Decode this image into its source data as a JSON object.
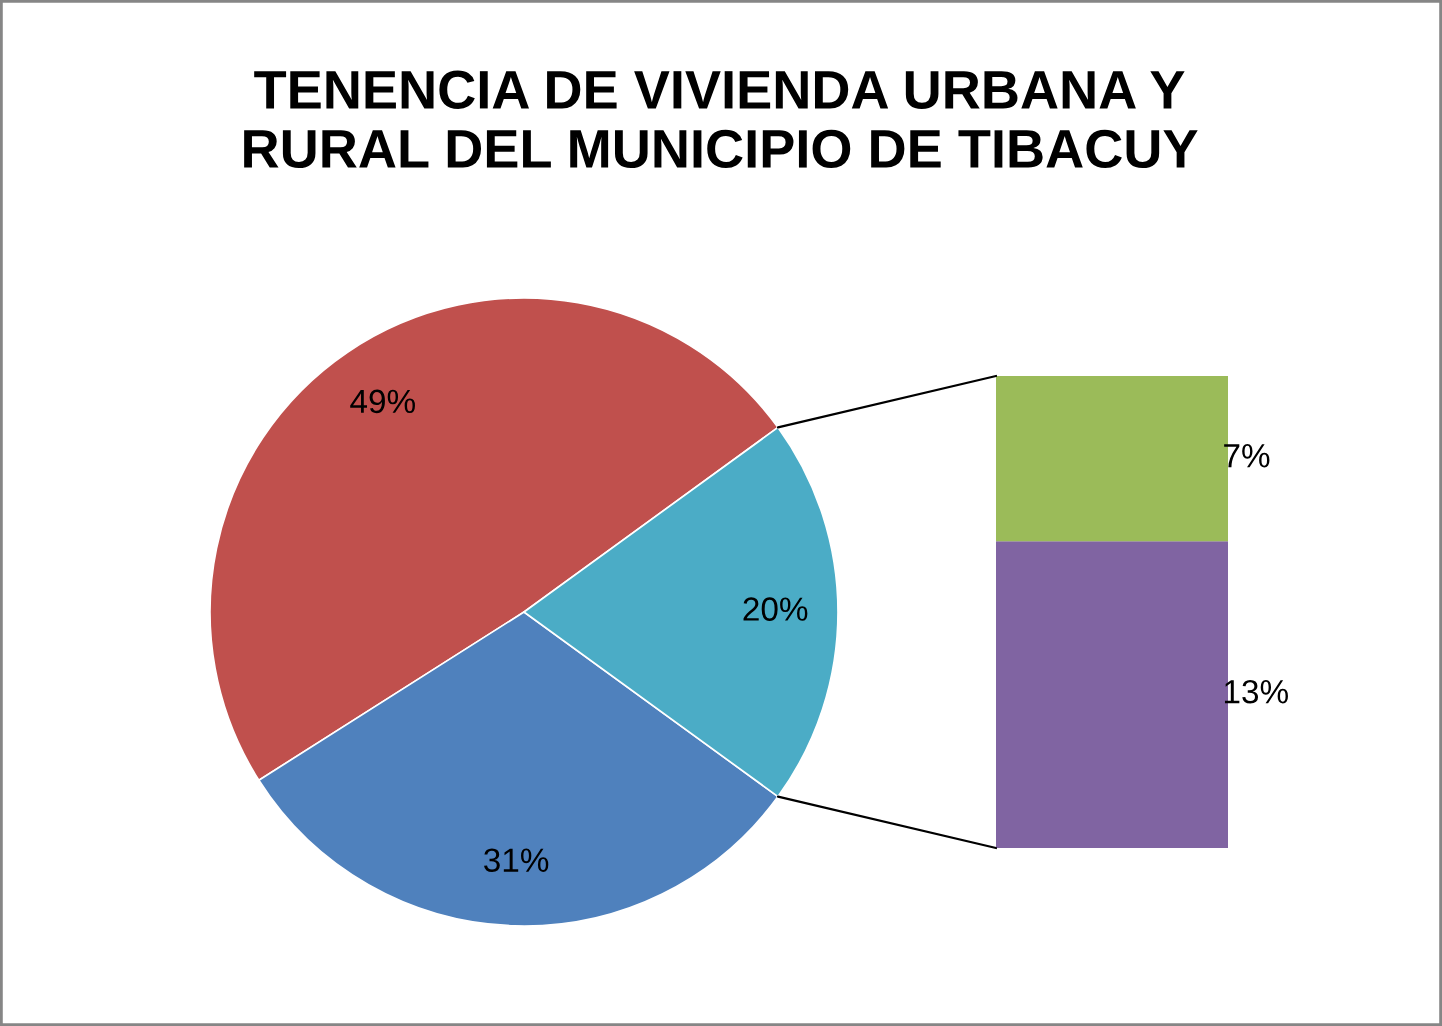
{
  "chart_data": [
    {
      "type": "pie",
      "title": "TENENCIA DE VIVIENDA URBANA Y\nRURAL DEL MUNICIPIO DE TIBACUY",
      "categories": [
        null,
        null,
        null
      ],
      "values": [
        49,
        31,
        20
      ],
      "colors": [
        "#c0504d",
        "#4f81bd",
        "#4bacc6"
      ],
      "value_labels": [
        "49%",
        "31%",
        "20%"
      ]
    },
    {
      "type": "bar",
      "stacked": true,
      "categories": [
        null
      ],
      "series": [
        {
          "color": "#8064a2",
          "values": [
            13
          ],
          "value_labels": [
            "13%"
          ]
        },
        {
          "color": "#9bbb59",
          "values": [
            7
          ],
          "value_labels": [
            "7%"
          ]
        }
      ]
    }
  ]
}
